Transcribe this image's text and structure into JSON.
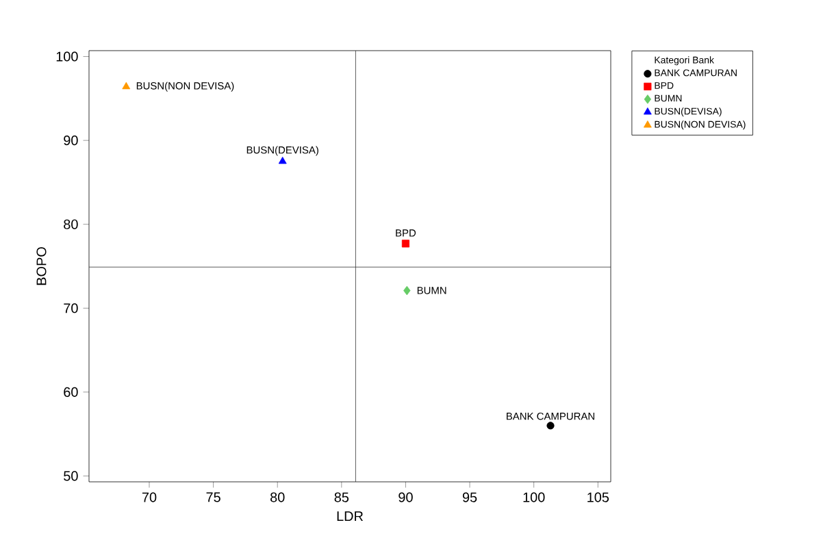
{
  "chart_data": {
    "type": "scatter",
    "xlabel": "LDR",
    "ylabel": "BOPO",
    "legend_title": "Kategori Bank",
    "legend": "top right",
    "grid": false,
    "xlim": [
      65.3,
      106
    ],
    "ylim": [
      49.3,
      100.7
    ],
    "xticks": [
      70,
      75,
      80,
      85,
      90,
      95,
      100,
      105
    ],
    "yticks": [
      50,
      60,
      70,
      80,
      90,
      100
    ],
    "series": [
      {
        "name": "BANK CAMPURAN",
        "color": "#000000",
        "marker": "circle",
        "x": [
          101.3
        ],
        "values": [
          56.0
        ]
      },
      {
        "name": "BPD",
        "color": "#ff0000",
        "marker": "square",
        "x": [
          90.0
        ],
        "values": [
          77.7
        ]
      },
      {
        "name": "BUMN",
        "color": "#66cc66",
        "marker": "diamond",
        "x": [
          90.1
        ],
        "values": [
          72.1
        ]
      },
      {
        "name": "BUSN(DEVISA)",
        "color": "#0000ff",
        "marker": "triangle",
        "x": [
          80.4
        ],
        "values": [
          87.5
        ]
      },
      {
        "name": "BUSN(NON DEVISA)",
        "color": "#ff9900",
        "marker": "triangle",
        "x": [
          68.2
        ],
        "values": [
          96.4
        ]
      }
    ],
    "annotations": [
      {
        "text": "BUSN(NON DEVISA)",
        "x": 68.2,
        "y": 96.4
      },
      {
        "text": "BUSN(DEVISA)",
        "x": 80.4,
        "y": 87.5
      },
      {
        "text": "BPD",
        "x": 90.0,
        "y": 77.7
      },
      {
        "text": "BUMN",
        "x": 90.1,
        "y": 72.1
      },
      {
        "text": "BANK CAMPURAN",
        "x": 101.3,
        "y": 56.0
      }
    ],
    "ref_lines": [
      {
        "axis": "x",
        "value": 86.1,
        "color": "#333333"
      },
      {
        "axis": "y",
        "value": 74.9,
        "color": "#333333"
      }
    ]
  }
}
